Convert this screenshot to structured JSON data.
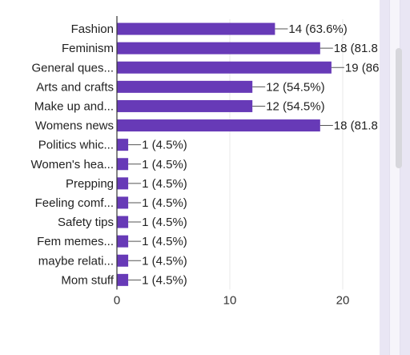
{
  "chart_data": {
    "type": "bar",
    "orientation": "horizontal",
    "categories": [
      "Fashion",
      "Feminism",
      "General ques...",
      "Arts and crafts",
      "Make up and...",
      "Womens news",
      "Politics whic...",
      "Women's hea...",
      "Prepping",
      "Feeling comf...",
      "Safety tips",
      "Fem memes...",
      "maybe relati...",
      "Mom stuff"
    ],
    "values": [
      14,
      18,
      19,
      12,
      12,
      18,
      1,
      1,
      1,
      1,
      1,
      1,
      1,
      1
    ],
    "data_labels": [
      "14 (63.6%)",
      "18 (81.8",
      "19 (86",
      "12 (54.5%)",
      "12 (54.5%)",
      "18 (81.8",
      "1 (4.5%)",
      "1 (4.5%)",
      "1 (4.5%)",
      "1 (4.5%)",
      "1 (4.5%)",
      "1 (4.5%)",
      "1 (4.5%)",
      "1 (4.5%)"
    ],
    "x_ticks": [
      0,
      10,
      20
    ],
    "xlim": [
      0,
      20
    ],
    "title": "",
    "xlabel": "",
    "ylabel": "",
    "grid": true,
    "legend": "none",
    "colors": {
      "bar": "#673ab7",
      "grid": "#e8e8e8",
      "axis": "#333333",
      "leader": "#555555"
    }
  }
}
